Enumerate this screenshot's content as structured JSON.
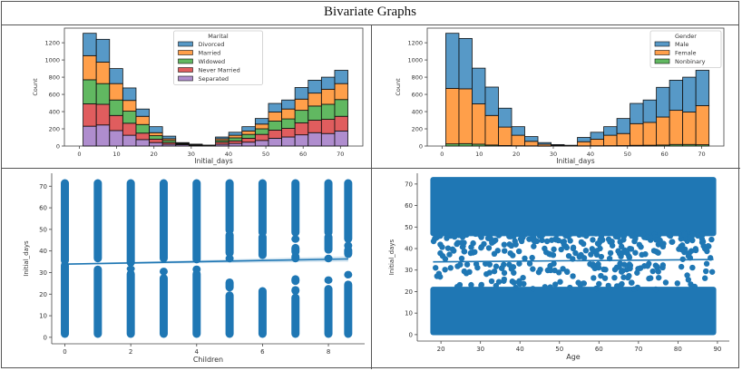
{
  "page": {
    "title": "Bivariate Graphs"
  },
  "chart_data": [
    {
      "id": "marital-hist",
      "type": "bar",
      "stacked": true,
      "xlabel": "Initial_days",
      "ylabel": "Count",
      "xlim": [
        -4,
        76
      ],
      "ylim": [
        0,
        1370
      ],
      "xticks": [
        0,
        10,
        20,
        30,
        40,
        50,
        60,
        70
      ],
      "yticks": [
        0,
        200,
        400,
        600,
        800,
        1000,
        1200
      ],
      "bin_edges": [
        1.0,
        4.55,
        8.1,
        11.65,
        15.2,
        18.75,
        22.3,
        25.85,
        29.4,
        32.95,
        36.5,
        40.05,
        43.6,
        47.15,
        50.7,
        54.25,
        57.8,
        61.35,
        64.9,
        68.45,
        72.0
      ],
      "legend": {
        "title": "Marital",
        "position": "top-center"
      },
      "series": [
        {
          "name": "Separated",
          "color": "#9467bd",
          "values": [
            230,
            245,
            180,
            125,
            75,
            40,
            20,
            15,
            8,
            4,
            20,
            30,
            45,
            65,
            90,
            105,
            130,
            155,
            145,
            175
          ]
        },
        {
          "name": "Never Married",
          "color": "#d62728",
          "values": [
            260,
            240,
            175,
            140,
            75,
            40,
            20,
            8,
            5,
            2,
            25,
            30,
            45,
            70,
            95,
            100,
            140,
            145,
            165,
            170
          ]
        },
        {
          "name": "Widowed",
          "color": "#2ca02c",
          "values": [
            280,
            240,
            180,
            140,
            100,
            40,
            25,
            7,
            4,
            2,
            20,
            35,
            45,
            65,
            105,
            110,
            145,
            165,
            175,
            195
          ]
        },
        {
          "name": "Married",
          "color": "#ff7f0e",
          "values": [
            280,
            250,
            190,
            125,
            95,
            35,
            20,
            6,
            3,
            1,
            20,
            30,
            40,
            55,
            105,
            115,
            130,
            150,
            175,
            185
          ]
        },
        {
          "name": "Divorced",
          "color": "#1f77b4",
          "values": [
            260,
            265,
            175,
            145,
            85,
            70,
            30,
            4,
            2,
            1,
            20,
            35,
            50,
            65,
            100,
            105,
            135,
            150,
            140,
            155
          ]
        }
      ]
    },
    {
      "id": "gender-hist",
      "type": "bar",
      "stacked": true,
      "xlabel": "Initial_days",
      "ylabel": "Count",
      "xlim": [
        -4,
        76
      ],
      "ylim": [
        0,
        1370
      ],
      "xticks": [
        0,
        10,
        20,
        30,
        40,
        50,
        60,
        70
      ],
      "yticks": [
        0,
        200,
        400,
        600,
        800,
        1000,
        1200
      ],
      "bin_edges": [
        1.0,
        4.55,
        8.1,
        11.65,
        15.2,
        18.75,
        22.3,
        25.85,
        29.4,
        32.95,
        36.5,
        40.05,
        43.6,
        47.15,
        50.7,
        54.25,
        57.8,
        61.35,
        64.9,
        68.45,
        72.0
      ],
      "legend": {
        "title": "Gender",
        "position": "top-right"
      },
      "series": [
        {
          "name": "Nonbinary",
          "color": "#2ca02c",
          "values": [
            25,
            28,
            22,
            12,
            6,
            3,
            2,
            1,
            0,
            0,
            2,
            3,
            4,
            5,
            8,
            9,
            12,
            18,
            18,
            15
          ]
        },
        {
          "name": "Female",
          "color": "#ff7f0e",
          "values": [
            645,
            637,
            468,
            343,
            214,
            122,
            53,
            20,
            8,
            5,
            48,
            77,
            121,
            140,
            252,
            266,
            325,
            397,
            377,
            455
          ]
        },
        {
          "name": "Male",
          "color": "#1f77b4",
          "values": [
            640,
            585,
            415,
            330,
            220,
            100,
            55,
            19,
            9,
            4,
            50,
            80,
            100,
            175,
            235,
            260,
            345,
            350,
            405,
            410
          ]
        }
      ]
    },
    {
      "id": "children-scatter",
      "type": "scatter",
      "xlabel": "Children",
      "ylabel": "Initial_days",
      "xlim": [
        -0.4,
        9.1
      ],
      "ylim": [
        -3,
        76
      ],
      "xticks": [
        0,
        2,
        4,
        6,
        8
      ],
      "yticks": [
        0,
        10,
        20,
        30,
        40,
        50,
        60,
        70
      ],
      "color": "#1f77b4",
      "columns": [
        {
          "x": 0,
          "ranges": [
            [
              1,
              34
            ],
            [
              35,
              72
            ]
          ]
        },
        {
          "x": 1,
          "ranges": [
            [
              1,
              32
            ],
            [
              36,
              72
            ]
          ]
        },
        {
          "x": 2,
          "ranges": [
            [
              1,
              30
            ],
            [
              31.5,
              32
            ],
            [
              34,
              72
            ]
          ]
        },
        {
          "x": 3,
          "ranges": [
            [
              1,
              28
            ],
            [
              30,
              31
            ],
            [
              36,
              72
            ]
          ]
        },
        {
          "x": 4,
          "ranges": [
            [
              1,
              30
            ],
            [
              31,
              32
            ],
            [
              35.5,
              72
            ]
          ]
        },
        {
          "x": 5,
          "ranges": [
            [
              1,
              20
            ],
            [
              22.5,
              26
            ],
            [
              36,
              37
            ],
            [
              38.5,
              48
            ],
            [
              49,
              72
            ]
          ]
        },
        {
          "x": 6,
          "ranges": [
            [
              1,
              22
            ],
            [
              37.5,
              47
            ],
            [
              48,
              72
            ]
          ]
        },
        {
          "x": 7,
          "ranges": [
            [
              1,
              19
            ],
            [
              21,
              22.5
            ],
            [
              25.5,
              27.5
            ],
            [
              36,
              38
            ],
            [
              39,
              42
            ],
            [
              45,
              46
            ],
            [
              48,
              72
            ]
          ]
        },
        {
          "x": 8,
          "ranges": [
            [
              1,
              23
            ],
            [
              26,
              27
            ],
            [
              36,
              37
            ],
            [
              40,
              47
            ],
            [
              48,
              72
            ]
          ]
        },
        {
          "x": 8.6,
          "ranges": [
            [
              1,
              25
            ],
            [
              28.5,
              29.5
            ],
            [
              38,
              41
            ],
            [
              42,
              43
            ],
            [
              45,
              72
            ]
          ]
        }
      ],
      "regression": {
        "x": [
          0,
          8.6
        ],
        "y": [
          33.9,
          36.3
        ]
      }
    },
    {
      "id": "age-scatter",
      "type": "scatter",
      "xlabel": "Age",
      "ylabel": "Initial_days",
      "xlim": [
        14,
        93
      ],
      "ylim": [
        -3,
        75
      ],
      "xticks": [
        20,
        30,
        40,
        50,
        60,
        70,
        80,
        90
      ],
      "yticks": [
        0,
        10,
        20,
        30,
        40,
        50,
        60,
        70
      ],
      "color": "#1f77b4",
      "dense_bands": [
        {
          "age": [
            18,
            89
          ],
          "days": [
            1,
            21
          ]
        },
        {
          "age": [
            18,
            89
          ],
          "days": [
            47,
            72
          ]
        }
      ],
      "sparse_bands": [
        {
          "age": [
            18,
            89
          ],
          "days": [
            21,
            33
          ],
          "count": 140
        },
        {
          "age": [
            18,
            89
          ],
          "days": [
            35,
            47
          ],
          "count": 260
        }
      ],
      "regression": {
        "x": [
          18,
          89
        ],
        "y": [
          33.8,
          34.9
        ]
      }
    }
  ]
}
